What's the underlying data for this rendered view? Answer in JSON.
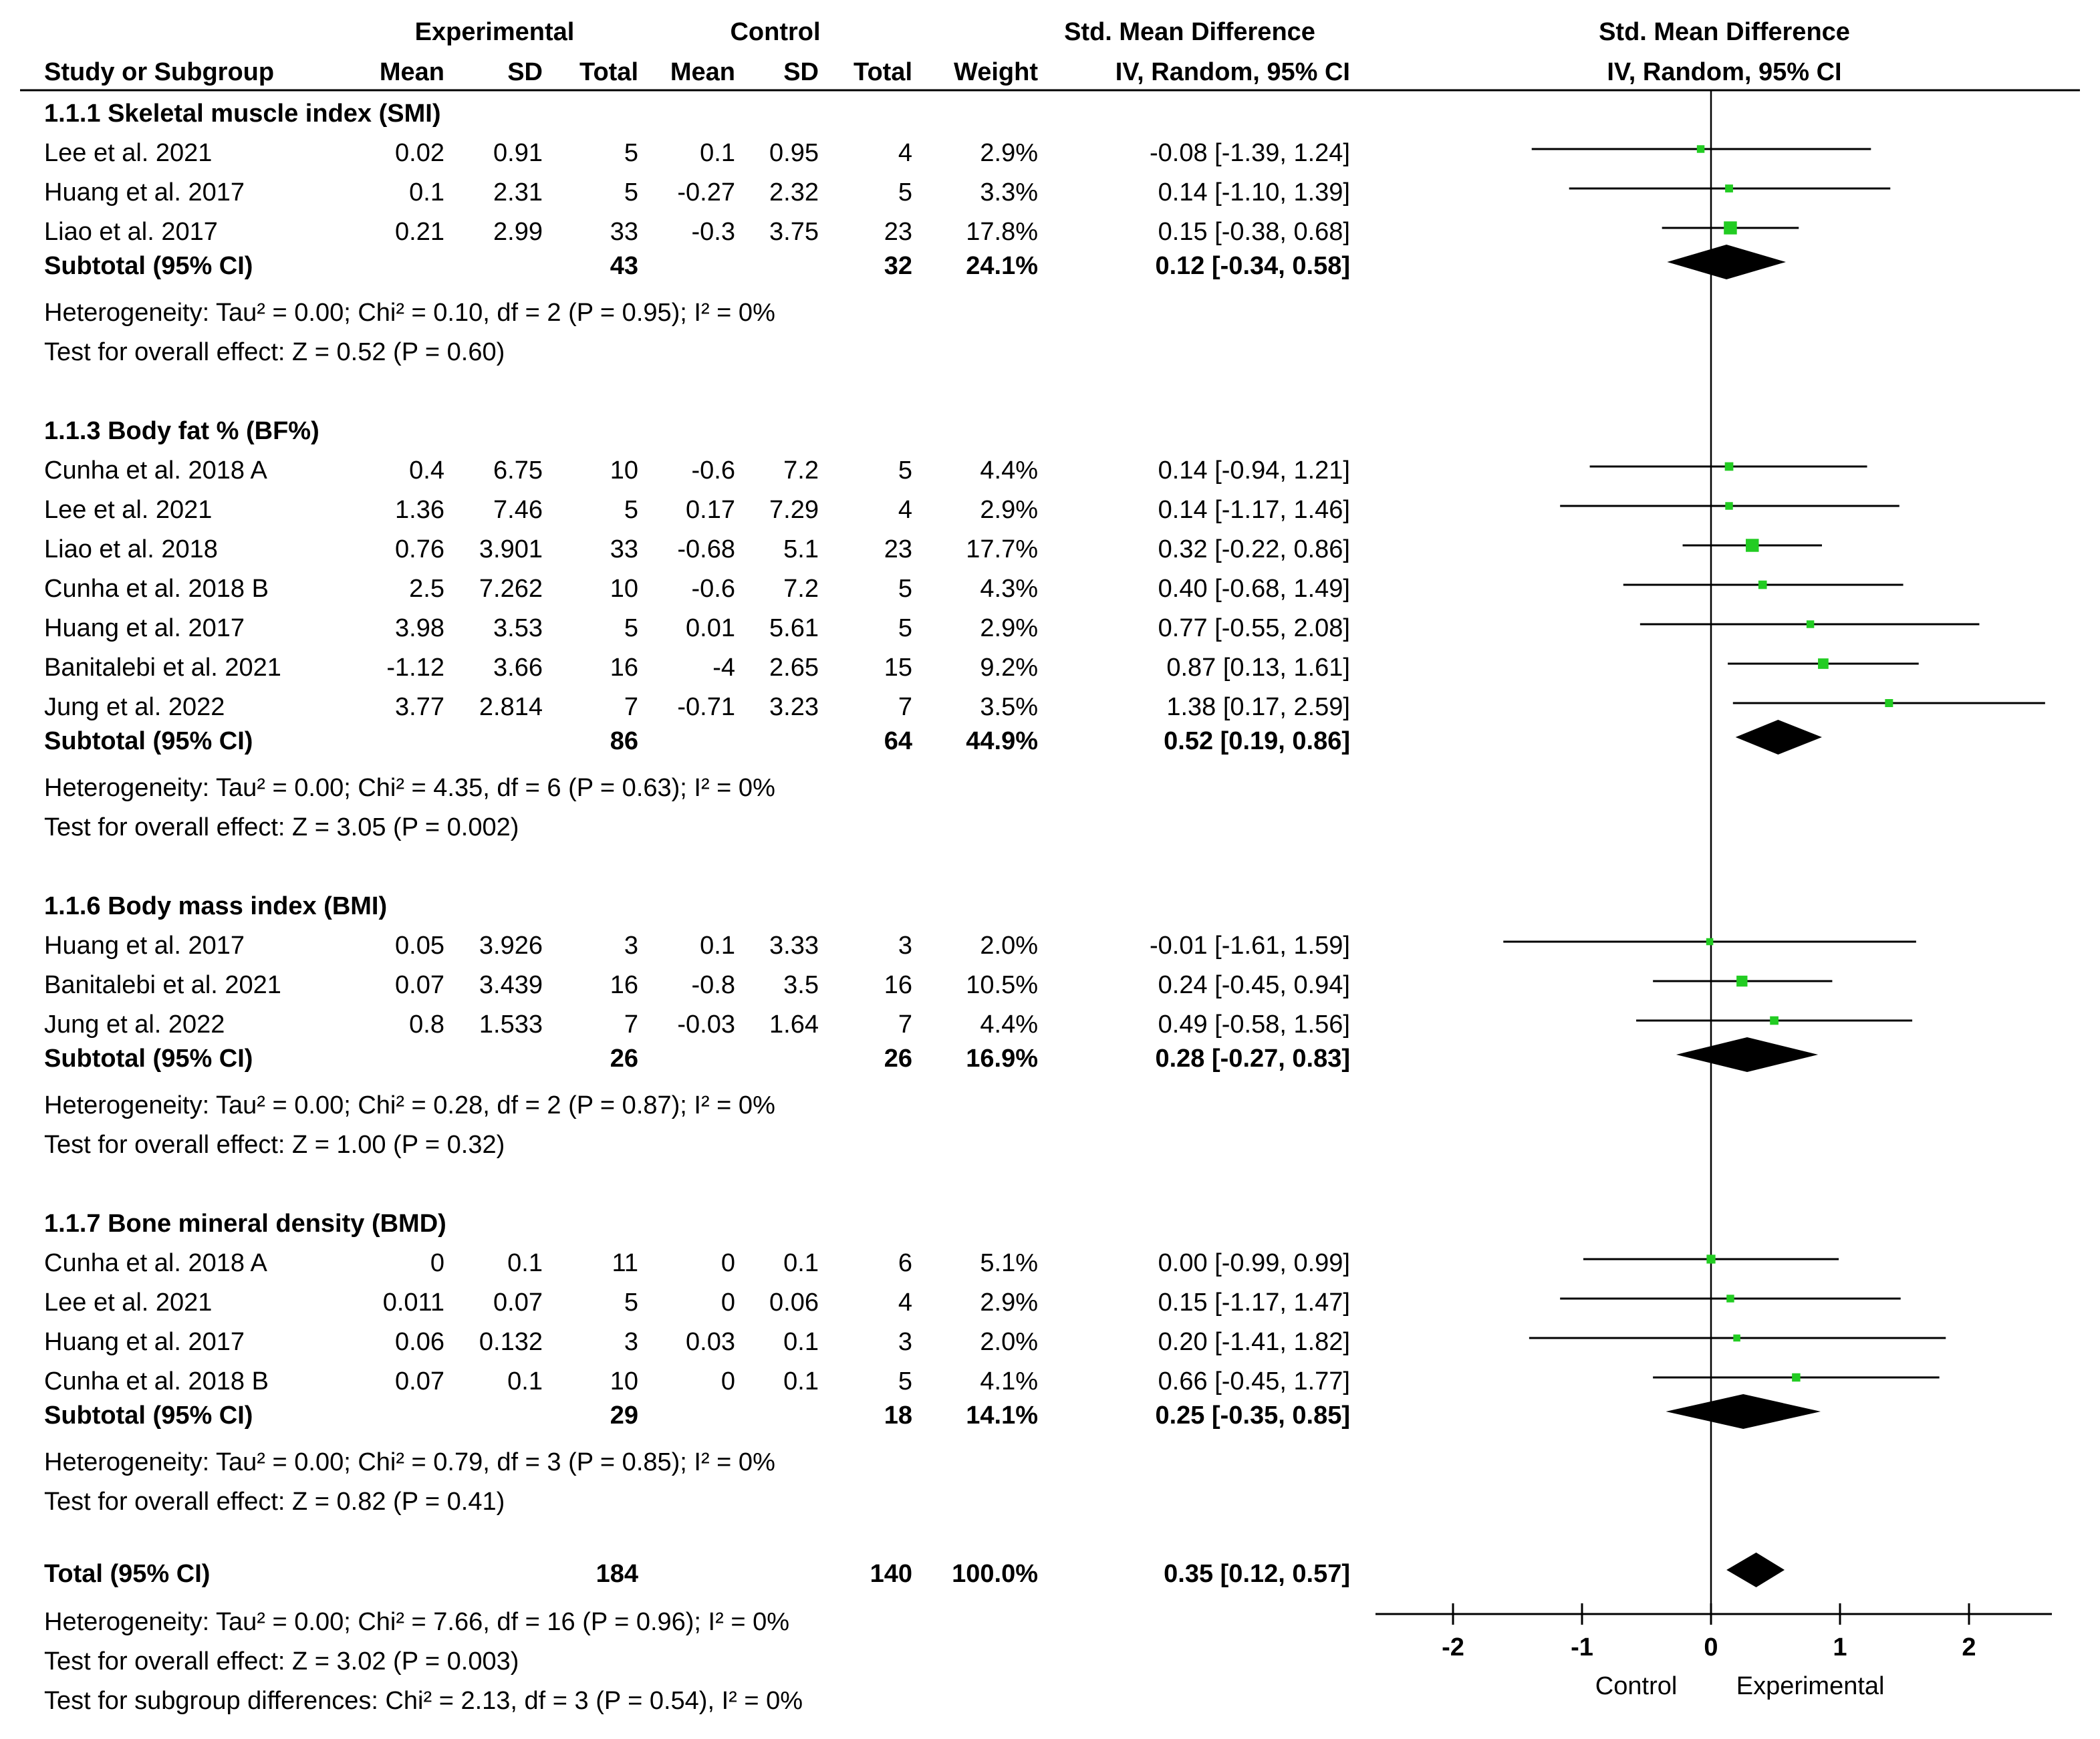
{
  "header": {
    "experimental": "Experimental",
    "control": "Control",
    "smd_title": "Std. Mean Difference",
    "plot_title": "Std. Mean Difference",
    "plot_subtitle": "IV, Random, 95% CI",
    "cols": {
      "study": "Study or Subgroup",
      "e_mean": "Mean",
      "e_sd": "SD",
      "e_total": "Total",
      "c_mean": "Mean",
      "c_sd": "SD",
      "c_total": "Total",
      "weight": "Weight",
      "ci": "IV, Random, 95% CI"
    }
  },
  "subgroups": [
    {
      "title": "1.1.1 Skeletal muscle index (SMI)",
      "studies": [
        {
          "name": "Lee et al. 2021",
          "e_mean": "0.02",
          "e_sd": "0.91",
          "e_total": "5",
          "c_mean": "0.1",
          "c_sd": "0.95",
          "c_total": "4",
          "weight": "2.9%",
          "ci": "-0.08 [-1.39, 1.24]"
        },
        {
          "name": "Huang et al. 2017",
          "e_mean": "0.1",
          "e_sd": "2.31",
          "e_total": "5",
          "c_mean": "-0.27",
          "c_sd": "2.32",
          "c_total": "5",
          "weight": "3.3%",
          "ci": "0.14 [-1.10, 1.39]"
        },
        {
          "name": "Liao et al. 2017",
          "e_mean": "0.21",
          "e_sd": "2.99",
          "e_total": "33",
          "c_mean": "-0.3",
          "c_sd": "3.75",
          "c_total": "23",
          "weight": "17.8%",
          "ci": "0.15 [-0.38, 0.68]"
        }
      ],
      "subtotal": {
        "label": "Subtotal (95% CI)",
        "e_total": "43",
        "c_total": "32",
        "weight": "24.1%",
        "ci": "0.12 [-0.34, 0.58]"
      },
      "heterogeneity": "Heterogeneity: Tau² = 0.00; Chi² = 0.10, df = 2 (P = 0.95); I² = 0%",
      "overall": "Test for overall effect: Z = 0.52 (P = 0.60)"
    },
    {
      "title": "1.1.3 Body fat % (BF%)",
      "studies": [
        {
          "name": "Cunha et al. 2018 A",
          "e_mean": "0.4",
          "e_sd": "6.75",
          "e_total": "10",
          "c_mean": "-0.6",
          "c_sd": "7.2",
          "c_total": "5",
          "weight": "4.4%",
          "ci": "0.14 [-0.94, 1.21]"
        },
        {
          "name": "Lee et al. 2021",
          "e_mean": "1.36",
          "e_sd": "7.46",
          "e_total": "5",
          "c_mean": "0.17",
          "c_sd": "7.29",
          "c_total": "4",
          "weight": "2.9%",
          "ci": "0.14 [-1.17, 1.46]"
        },
        {
          "name": "Liao et al. 2018",
          "e_mean": "0.76",
          "e_sd": "3.901",
          "e_total": "33",
          "c_mean": "-0.68",
          "c_sd": "5.1",
          "c_total": "23",
          "weight": "17.7%",
          "ci": "0.32 [-0.22, 0.86]"
        },
        {
          "name": "Cunha et al. 2018 B",
          "e_mean": "2.5",
          "e_sd": "7.262",
          "e_total": "10",
          "c_mean": "-0.6",
          "c_sd": "7.2",
          "c_total": "5",
          "weight": "4.3%",
          "ci": "0.40 [-0.68, 1.49]"
        },
        {
          "name": "Huang et al. 2017",
          "e_mean": "3.98",
          "e_sd": "3.53",
          "e_total": "5",
          "c_mean": "0.01",
          "c_sd": "5.61",
          "c_total": "5",
          "weight": "2.9%",
          "ci": "0.77 [-0.55, 2.08]"
        },
        {
          "name": "Banitalebi et al. 2021",
          "e_mean": "-1.12",
          "e_sd": "3.66",
          "e_total": "16",
          "c_mean": "-4",
          "c_sd": "2.65",
          "c_total": "15",
          "weight": "9.2%",
          "ci": "0.87 [0.13, 1.61]"
        },
        {
          "name": "Jung et al. 2022",
          "e_mean": "3.77",
          "e_sd": "2.814",
          "e_total": "7",
          "c_mean": "-0.71",
          "c_sd": "3.23",
          "c_total": "7",
          "weight": "3.5%",
          "ci": "1.38 [0.17, 2.59]"
        }
      ],
      "subtotal": {
        "label": "Subtotal (95% CI)",
        "e_total": "86",
        "c_total": "64",
        "weight": "44.9%",
        "ci": "0.52 [0.19, 0.86]"
      },
      "heterogeneity": "Heterogeneity: Tau² = 0.00; Chi² = 4.35, df = 6 (P = 0.63); I² = 0%",
      "overall": "Test for overall effect: Z = 3.05 (P = 0.002)"
    },
    {
      "title": "1.1.6 Body mass index (BMI)",
      "studies": [
        {
          "name": "Huang et al. 2017",
          "e_mean": "0.05",
          "e_sd": "3.926",
          "e_total": "3",
          "c_mean": "0.1",
          "c_sd": "3.33",
          "c_total": "3",
          "weight": "2.0%",
          "ci": "-0.01 [-1.61, 1.59]"
        },
        {
          "name": "Banitalebi et al. 2021",
          "e_mean": "0.07",
          "e_sd": "3.439",
          "e_total": "16",
          "c_mean": "-0.8",
          "c_sd": "3.5",
          "c_total": "16",
          "weight": "10.5%",
          "ci": "0.24 [-0.45, 0.94]"
        },
        {
          "name": "Jung et al. 2022",
          "e_mean": "0.8",
          "e_sd": "1.533",
          "e_total": "7",
          "c_mean": "-0.03",
          "c_sd": "1.64",
          "c_total": "7",
          "weight": "4.4%",
          "ci": "0.49 [-0.58, 1.56]"
        }
      ],
      "subtotal": {
        "label": "Subtotal (95% CI)",
        "e_total": "26",
        "c_total": "26",
        "weight": "16.9%",
        "ci": "0.28 [-0.27, 0.83]"
      },
      "heterogeneity": "Heterogeneity: Tau² = 0.00; Chi² = 0.28, df = 2 (P = 0.87); I² = 0%",
      "overall": "Test for overall effect: Z = 1.00 (P = 0.32)"
    },
    {
      "title": "1.1.7 Bone mineral density (BMD)",
      "studies": [
        {
          "name": "Cunha et al. 2018 A",
          "e_mean": "0",
          "e_sd": "0.1",
          "e_total": "11",
          "c_mean": "0",
          "c_sd": "0.1",
          "c_total": "6",
          "weight": "5.1%",
          "ci": "0.00 [-0.99, 0.99]"
        },
        {
          "name": "Lee et al. 2021",
          "e_mean": "0.011",
          "e_sd": "0.07",
          "e_total": "5",
          "c_mean": "0",
          "c_sd": "0.06",
          "c_total": "4",
          "weight": "2.9%",
          "ci": "0.15 [-1.17, 1.47]"
        },
        {
          "name": "Huang et al. 2017",
          "e_mean": "0.06",
          "e_sd": "0.132",
          "e_total": "3",
          "c_mean": "0.03",
          "c_sd": "0.1",
          "c_total": "3",
          "weight": "2.0%",
          "ci": "0.20 [-1.41, 1.82]"
        },
        {
          "name": "Cunha et al. 2018 B",
          "e_mean": "0.07",
          "e_sd": "0.1",
          "e_total": "10",
          "c_mean": "0",
          "c_sd": "0.1",
          "c_total": "5",
          "weight": "4.1%",
          "ci": "0.66 [-0.45, 1.77]"
        }
      ],
      "subtotal": {
        "label": "Subtotal (95% CI)",
        "e_total": "29",
        "c_total": "18",
        "weight": "14.1%",
        "ci": "0.25 [-0.35, 0.85]"
      },
      "heterogeneity": "Heterogeneity: Tau² = 0.00; Chi² = 0.79, df = 3 (P = 0.85); I² = 0%",
      "overall": "Test for overall effect: Z = 0.82 (P = 0.41)"
    }
  ],
  "total": {
    "label": "Total (95% CI)",
    "e_total": "184",
    "c_total": "140",
    "weight": "100.0%",
    "ci": "0.35 [0.12, 0.57]",
    "heterogeneity": "Heterogeneity: Tau² = 0.00; Chi² = 7.66, df = 16 (P = 0.96); I² = 0%",
    "overall": "Test for overall effect: Z = 3.02 (P = 0.003)",
    "subgroup_diff": "Test for subgroup differences: Chi² = 2.13, df = 3 (P = 0.54), I² = 0%"
  },
  "colors": {
    "point": "#22cc22",
    "line": "#000000",
    "diamond": "#000000"
  },
  "chart_data": {
    "type": "forest",
    "title": "Std. Mean Difference",
    "subtitle": "IV, Random, 95% CI",
    "xlim": [
      -2.6,
      2.6
    ],
    "xticks": [
      -2,
      -1,
      0,
      1,
      2
    ],
    "xtick_labels": [
      "-2",
      "-1",
      "0",
      "1",
      "2"
    ],
    "left_label": "Control",
    "right_label": "Experimental",
    "studies": [
      {
        "group": 0,
        "est": -0.08,
        "lo": -1.39,
        "hi": 1.24,
        "weight": 2.9
      },
      {
        "group": 0,
        "est": 0.14,
        "lo": -1.1,
        "hi": 1.39,
        "weight": 3.3
      },
      {
        "group": 0,
        "est": 0.15,
        "lo": -0.38,
        "hi": 0.68,
        "weight": 17.8
      },
      {
        "group": 1,
        "est": 0.14,
        "lo": -0.94,
        "hi": 1.21,
        "weight": 4.4
      },
      {
        "group": 1,
        "est": 0.14,
        "lo": -1.17,
        "hi": 1.46,
        "weight": 2.9
      },
      {
        "group": 1,
        "est": 0.32,
        "lo": -0.22,
        "hi": 0.86,
        "weight": 17.7
      },
      {
        "group": 1,
        "est": 0.4,
        "lo": -0.68,
        "hi": 1.49,
        "weight": 4.3
      },
      {
        "group": 1,
        "est": 0.77,
        "lo": -0.55,
        "hi": 2.08,
        "weight": 2.9
      },
      {
        "group": 1,
        "est": 0.87,
        "lo": 0.13,
        "hi": 1.61,
        "weight": 9.2
      },
      {
        "group": 1,
        "est": 1.38,
        "lo": 0.17,
        "hi": 2.59,
        "weight": 3.5
      },
      {
        "group": 2,
        "est": -0.01,
        "lo": -1.61,
        "hi": 1.59,
        "weight": 2.0
      },
      {
        "group": 2,
        "est": 0.24,
        "lo": -0.45,
        "hi": 0.94,
        "weight": 10.5
      },
      {
        "group": 2,
        "est": 0.49,
        "lo": -0.58,
        "hi": 1.56,
        "weight": 4.4
      },
      {
        "group": 3,
        "est": 0.0,
        "lo": -0.99,
        "hi": 0.99,
        "weight": 5.1
      },
      {
        "group": 3,
        "est": 0.15,
        "lo": -1.17,
        "hi": 1.47,
        "weight": 2.9
      },
      {
        "group": 3,
        "est": 0.2,
        "lo": -1.41,
        "hi": 1.82,
        "weight": 2.0
      },
      {
        "group": 3,
        "est": 0.66,
        "lo": -0.45,
        "hi": 1.77,
        "weight": 4.1
      }
    ],
    "subtotals": [
      {
        "est": 0.12,
        "lo": -0.34,
        "hi": 0.58
      },
      {
        "est": 0.52,
        "lo": 0.19,
        "hi": 0.86
      },
      {
        "est": 0.28,
        "lo": -0.27,
        "hi": 0.83
      },
      {
        "est": 0.25,
        "lo": -0.35,
        "hi": 0.85
      }
    ],
    "overall": {
      "est": 0.35,
      "lo": 0.12,
      "hi": 0.57
    }
  }
}
